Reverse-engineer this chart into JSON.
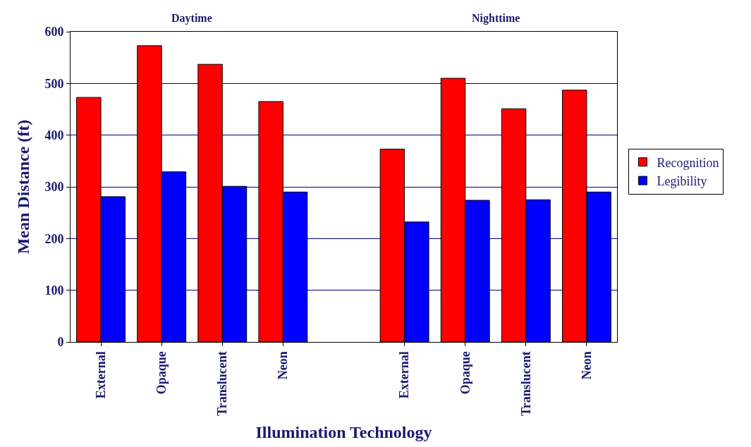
{
  "chart_data": {
    "type": "bar",
    "xlabel": "Illumination Technology",
    "ylabel": "Mean Distance (ft)",
    "categories": [
      "External",
      "Opaque",
      "Translucent",
      "Neon",
      null,
      "External",
      "Opaque",
      "Translucent",
      "Neon"
    ],
    "series": [
      {
        "name": "Recognition",
        "color": "#ff0000",
        "values": [
          473,
          573,
          537,
          465,
          null,
          373,
          510,
          451,
          487
        ]
      },
      {
        "name": "Legibility",
        "color": "#0000ff",
        "values": [
          281,
          329,
          301,
          290,
          null,
          232,
          274,
          275,
          290
        ]
      }
    ],
    "annotations": [
      "Daytime",
      "Nighttime"
    ],
    "ylim": [
      0,
      600
    ],
    "yticks": [
      0,
      100,
      200,
      300,
      400,
      500,
      600
    ],
    "grid": "y",
    "legend": "right"
  }
}
